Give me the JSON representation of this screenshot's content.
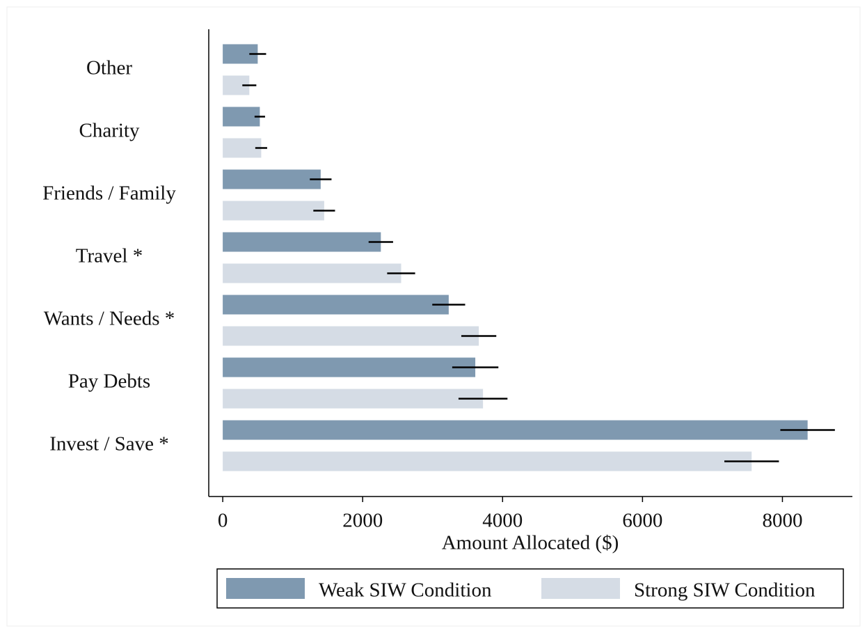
{
  "chart_data": {
    "type": "bar",
    "orientation": "horizontal",
    "x_label": "Amount Allocated ($)",
    "categories": [
      "Other",
      "Charity",
      "Friends / Family",
      "Travel *",
      "Wants / Needs *",
      "Pay Debts",
      "Invest / Save *"
    ],
    "series": [
      {
        "name": "Weak SIW Condition",
        "color": "#7f99b0",
        "values": [
          500,
          530,
          1400,
          2260,
          3230,
          3610,
          8360
        ],
        "errors": [
          120,
          75,
          155,
          175,
          235,
          330,
          390
        ]
      },
      {
        "name": "Strong SIW Condition",
        "color": "#d5dce5",
        "values": [
          380,
          550,
          1450,
          2550,
          3660,
          3720,
          7560
        ],
        "errors": [
          100,
          85,
          155,
          200,
          250,
          350,
          390
        ]
      }
    ],
    "xlim": [
      -200,
      9000
    ],
    "xticks": [
      0,
      2000,
      4000,
      6000,
      8000
    ],
    "grid": false,
    "legend": "bottom"
  }
}
